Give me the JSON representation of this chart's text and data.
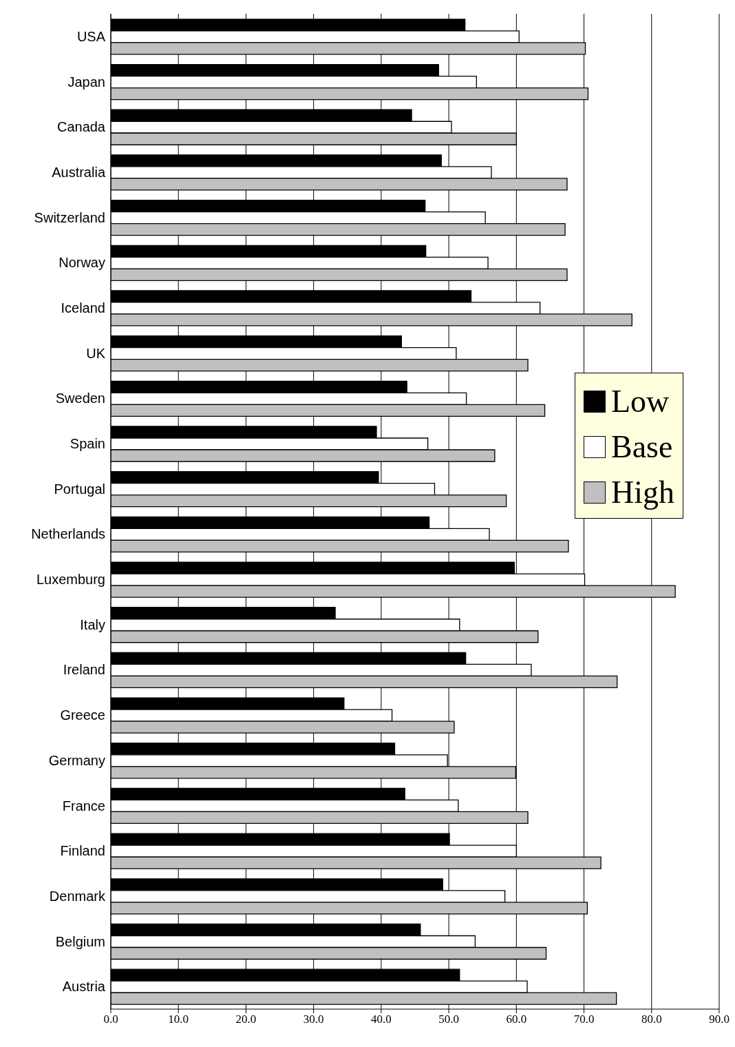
{
  "chart_data": {
    "type": "bar",
    "orientation": "horizontal",
    "categories": [
      "USA",
      "Japan",
      "Canada",
      "Australia",
      "Switzerland",
      "Norway",
      "Iceland",
      "UK",
      "Sweden",
      "Spain",
      "Portugal",
      "Netherlands",
      "Luxemburg",
      "Italy",
      "Ireland",
      "Greece",
      "Germany",
      "France",
      "Finland",
      "Denmark",
      "Belgium",
      "Austria"
    ],
    "series": [
      {
        "name": "Low",
        "color": "#000000",
        "values": [
          52.4,
          48.5,
          44.5,
          48.9,
          46.5,
          46.6,
          53.3,
          43.0,
          43.8,
          39.3,
          39.6,
          47.1,
          59.7,
          33.2,
          52.5,
          34.5,
          42.0,
          43.5,
          50.1,
          49.1,
          45.8,
          51.6
        ]
      },
      {
        "name": "Base",
        "color": "#ffffff",
        "values": [
          60.4,
          54.1,
          50.4,
          56.3,
          55.4,
          55.8,
          63.5,
          51.1,
          52.6,
          46.9,
          47.9,
          56.0,
          70.1,
          51.6,
          62.2,
          41.6,
          49.8,
          51.4,
          60.0,
          58.3,
          53.9,
          61.6
        ]
      },
      {
        "name": "High",
        "color": "#c0c0c0",
        "values": [
          70.2,
          70.6,
          60.0,
          67.5,
          67.2,
          67.5,
          77.1,
          61.7,
          64.2,
          56.8,
          58.5,
          67.7,
          83.5,
          63.2,
          74.9,
          50.8,
          59.9,
          61.7,
          72.5,
          70.5,
          64.4,
          74.8
        ]
      }
    ],
    "xlim": [
      0,
      90
    ],
    "xticks": [
      {
        "value": 0,
        "label": "0.0"
      },
      {
        "value": 10,
        "label": "10.0"
      },
      {
        "value": 20,
        "label": "20.0"
      },
      {
        "value": 30,
        "label": "30.0"
      },
      {
        "value": 40,
        "label": "40.0"
      },
      {
        "value": 50,
        "label": "50.0"
      },
      {
        "value": 60,
        "label": "60.0"
      },
      {
        "value": 70,
        "label": "70.0"
      },
      {
        "value": 80,
        "label": "80.0"
      },
      {
        "value": 90,
        "label": "90.0"
      }
    ],
    "grid": "x",
    "legend": "right"
  }
}
